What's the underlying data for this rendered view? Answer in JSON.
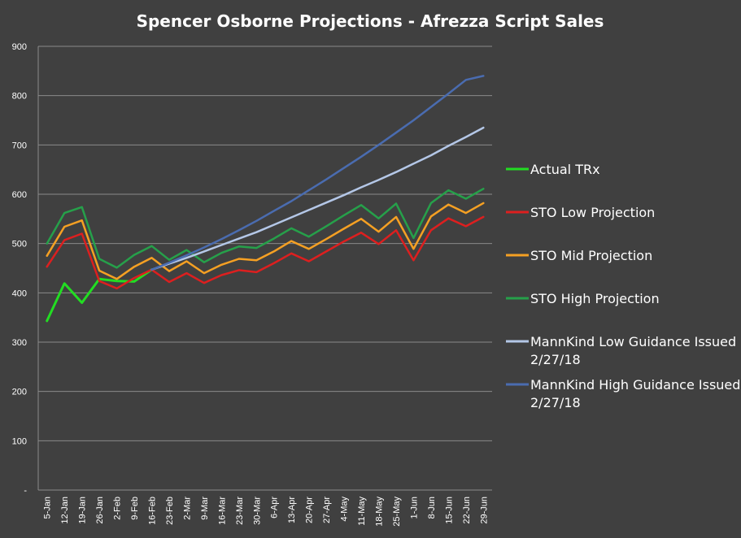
{
  "chart_data": {
    "type": "line",
    "title": "Spencer Osborne Projections -  Afrezza Script Sales",
    "xlabel": "",
    "ylabel": "",
    "ylim": [
      0,
      900
    ],
    "yticks": [
      "-",
      "100",
      "200",
      "300",
      "400",
      "500",
      "600",
      "700",
      "800",
      "900"
    ],
    "grid": true,
    "legend_position": "right",
    "categories": [
      "5-Jan",
      "12-Jan",
      "19-Jan",
      "26-Jan",
      "2-Feb",
      "9-Feb",
      "16-Feb",
      "23-Feb",
      "2-Mar",
      "9-Mar",
      "16-Mar",
      "23-Mar",
      "30-Mar",
      "6-Apr",
      "13-Apr",
      "20-Apr",
      "27-Apr",
      "4-May",
      "11-May",
      "18-May",
      "25-May",
      "1-Jun",
      "8-Jun",
      "15-Jun",
      "22-Jun",
      "29-Jun"
    ],
    "series": [
      {
        "name": "Actual TRx",
        "color": "#22dd22",
        "width": 3,
        "values": [
          343,
          419,
          380,
          428,
          424,
          423,
          447,
          null,
          null,
          null,
          null,
          null,
          null,
          null,
          null,
          null,
          null,
          null,
          null,
          null,
          null,
          null,
          null,
          null,
          null,
          null
        ]
      },
      {
        "name": "STO Low Projection",
        "color": "#dd1f1f",
        "width": 2.5,
        "values": [
          453,
          507,
          520,
          424,
          409,
          430,
          447,
          422,
          440,
          420,
          436,
          446,
          442,
          460,
          480,
          464,
          484,
          504,
          522,
          499,
          527,
          466,
          527,
          551,
          535,
          554
        ]
      },
      {
        "name": "STO Mid Projection",
        "color": "#f5a023",
        "width": 2.5,
        "values": [
          475,
          534,
          547,
          445,
          428,
          453,
          471,
          444,
          464,
          440,
          457,
          469,
          466,
          484,
          505,
          489,
          509,
          530,
          550,
          524,
          554,
          489,
          555,
          579,
          562,
          582
        ]
      },
      {
        "name": "STO High Projection",
        "color": "#26a04a",
        "width": 2.5,
        "values": [
          500,
          562,
          574,
          469,
          451,
          477,
          495,
          467,
          487,
          462,
          481,
          494,
          491,
          510,
          531,
          514,
          535,
          557,
          578,
          551,
          581,
          511,
          582,
          608,
          591,
          611
        ]
      },
      {
        "name": "MannKind Low Guidance Issued 2/27/18",
        "label_lines": [
          "MannKind Low Guidance Issued",
          "2/27/18"
        ],
        "color": "#b4c7e7",
        "width": 2.5,
        "values": [
          null,
          null,
          null,
          null,
          null,
          null,
          447,
          459,
          471,
          484,
          497,
          510,
          523,
          538,
          553,
          568,
          583,
          598,
          614,
          629,
          645,
          662,
          679,
          698,
          716,
          735
        ]
      },
      {
        "name": "MannKind High Guidance Issued 2/27/18",
        "label_lines": [
          "MannKind High Guidance Issued",
          "2/27/18"
        ],
        "color": "#4a6cb0",
        "width": 2.5,
        "values": [
          null,
          null,
          null,
          null,
          null,
          null,
          447,
          461,
          476,
          492,
          509,
          527,
          546,
          566,
          586,
          608,
          630,
          653,
          676,
          700,
          725,
          750,
          777,
          804,
          832,
          840
        ]
      }
    ],
    "legend_order": [
      "Actual TRx",
      "STO Low Projection",
      "STO Mid Projection",
      "STO High Projection",
      "MannKind Low Guidance Issued 2/27/18",
      "MannKind High Guidance Issued 2/27/18"
    ]
  }
}
